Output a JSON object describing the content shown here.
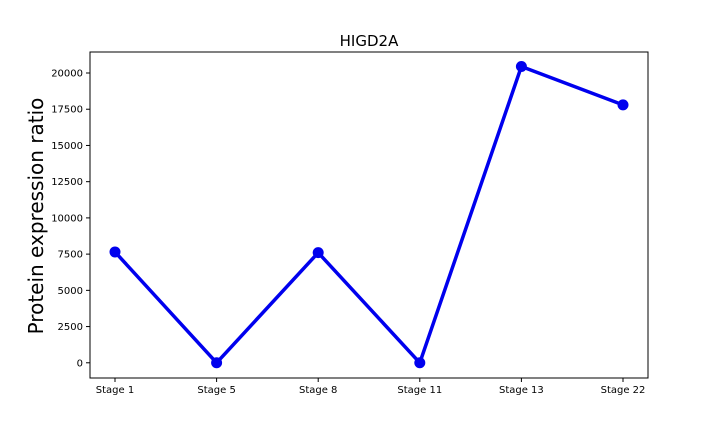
{
  "chart_data": {
    "type": "line",
    "title": "HIGD2A",
    "xlabel": "",
    "ylabel": "Protein expression ratio",
    "categories": [
      "Stage 1",
      "Stage 5",
      "Stage 8",
      "Stage 11",
      "Stage 13",
      "Stage 22"
    ],
    "series": [
      {
        "values": [
          7650,
          0,
          7600,
          0,
          20450,
          17800
        ],
        "color": "#0000ee"
      }
    ],
    "ylim": [
      -1050,
      21450
    ],
    "yticks": [
      0,
      2500,
      5000,
      7500,
      10000,
      12500,
      15000,
      17500,
      20000
    ],
    "grid": false,
    "legend": "none"
  }
}
